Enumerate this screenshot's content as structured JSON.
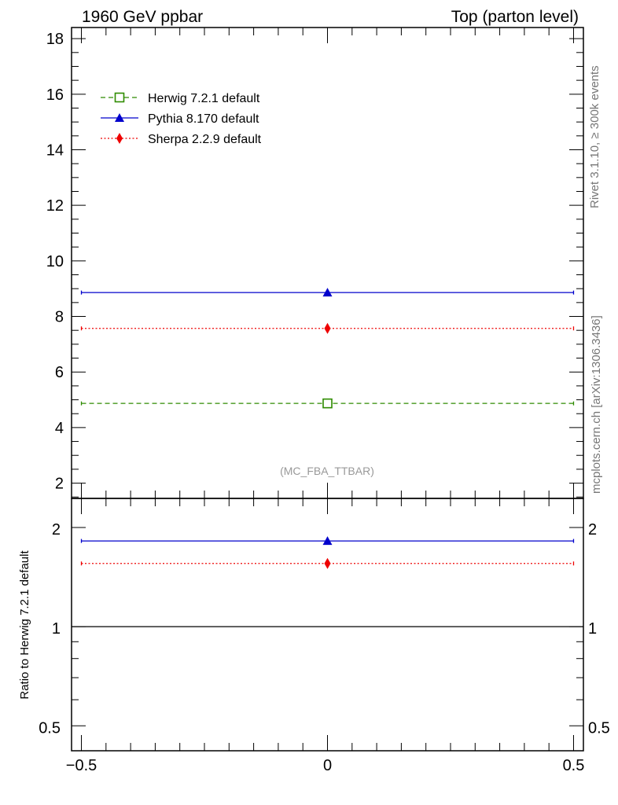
{
  "header": {
    "left": "1960 GeV ppbar",
    "right": "Top (parton level)"
  },
  "side_labels": {
    "rivet": "Rivet 3.1.10, ≥ 300k events",
    "mcplots": "mcplots.cern.ch [arXiv:1306.3436]"
  },
  "analysis_label": "(MC_FBA_TTBAR)",
  "chart_data": [
    {
      "type": "scatter",
      "panel": "main",
      "xlim": [
        -0.52,
        0.52
      ],
      "ylim": [
        1.45,
        18.4
      ],
      "yticks": [
        2,
        4,
        6,
        8,
        10,
        12,
        14,
        16,
        18
      ],
      "yticklabels": [
        "2",
        "4",
        "6",
        "8",
        "10",
        "12",
        "14",
        "16",
        "18"
      ],
      "legend_position": "top-left",
      "series": [
        {
          "name": "Herwig 7.2.1 default",
          "x": [
            0
          ],
          "xerr": [
            [
              -0.5,
              0.5
            ]
          ],
          "y": [
            4.87
          ],
          "color": "#2e8b00",
          "marker": "open-square",
          "linestyle": "dashed"
        },
        {
          "name": "Pythia 8.170 default",
          "x": [
            0
          ],
          "xerr": [
            [
              -0.5,
              0.5
            ]
          ],
          "y": [
            8.86
          ],
          "color": "#0000cc",
          "marker": "triangle",
          "linestyle": "solid"
        },
        {
          "name": "Sherpa 2.2.9 default",
          "x": [
            0
          ],
          "xerr": [
            [
              -0.5,
              0.5
            ]
          ],
          "y": [
            7.57
          ],
          "color": "#ee0000",
          "marker": "diamond",
          "linestyle": "dotted"
        }
      ]
    },
    {
      "type": "scatter",
      "panel": "ratio",
      "ylabel": "Ratio to Herwig 7.2.1 default",
      "yscale": "log",
      "xlim": [
        -0.52,
        0.52
      ],
      "ylim": [
        0.42,
        2.45
      ],
      "yticks": [
        0.5,
        1,
        2
      ],
      "yticklabels": [
        "0.5",
        "1",
        "2"
      ],
      "xticks": [
        -0.5,
        0,
        0.5
      ],
      "xticklabels": [
        "−0.5",
        "0",
        "0.5"
      ],
      "reference_line": 1,
      "series": [
        {
          "name": "Pythia 8.170 default",
          "x": [
            0
          ],
          "y": [
            1.82
          ],
          "color": "#0000cc",
          "marker": "triangle",
          "linestyle": "solid"
        },
        {
          "name": "Sherpa 2.2.9 default",
          "x": [
            0
          ],
          "y": [
            1.555
          ],
          "color": "#ee0000",
          "marker": "diamond",
          "linestyle": "dotted"
        }
      ]
    }
  ]
}
